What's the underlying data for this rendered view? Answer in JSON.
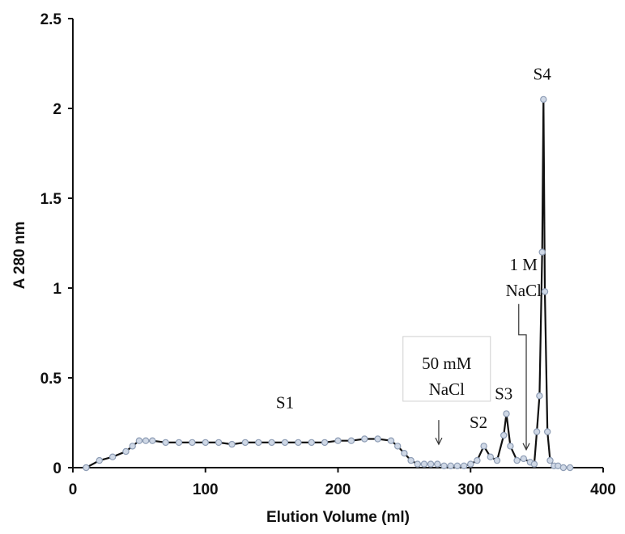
{
  "chart_data": {
    "type": "line",
    "title": "",
    "xlabel": "Elution Volume (ml)",
    "ylabel": "A 280 nm",
    "xlim": [
      0,
      400
    ],
    "ylim": [
      0,
      2.5
    ],
    "x_ticks": [
      0,
      100,
      200,
      300,
      400
    ],
    "x_tick_labels": [
      "0",
      "100",
      "200",
      "300",
      "400"
    ],
    "y_ticks": [
      0,
      0.5,
      1,
      1.5,
      2,
      2.5
    ],
    "y_tick_labels": [
      "0",
      "0.5",
      "1",
      "1.5",
      "2",
      "2.5"
    ],
    "grid": false,
    "legend": "none",
    "series": [
      {
        "x": [
          10,
          20,
          30,
          40,
          45,
          50,
          55,
          60,
          70,
          80,
          90,
          100,
          110,
          120,
          130,
          140,
          150,
          160,
          170,
          180,
          190,
          200,
          210,
          220,
          230,
          240,
          245,
          250,
          255,
          260,
          265,
          270,
          275,
          280,
          285,
          290,
          295,
          300,
          305,
          310,
          315,
          320,
          325,
          327,
          330,
          335,
          340,
          345,
          348,
          350,
          352,
          354,
          355,
          356,
          358,
          360,
          363,
          366,
          370,
          375
        ],
        "y": [
          0,
          0.04,
          0.06,
          0.09,
          0.12,
          0.15,
          0.15,
          0.15,
          0.14,
          0.14,
          0.14,
          0.14,
          0.14,
          0.13,
          0.14,
          0.14,
          0.14,
          0.14,
          0.14,
          0.14,
          0.14,
          0.15,
          0.15,
          0.16,
          0.16,
          0.15,
          0.12,
          0.08,
          0.04,
          0.02,
          0.02,
          0.02,
          0.02,
          0.01,
          0.01,
          0.01,
          0.01,
          0.02,
          0.04,
          0.12,
          0.06,
          0.04,
          0.18,
          0.3,
          0.12,
          0.04,
          0.05,
          0.03,
          0.02,
          0.2,
          0.4,
          1.2,
          2.05,
          0.98,
          0.2,
          0.04,
          0.01,
          0.01,
          0.0,
          0.0
        ]
      }
    ],
    "annotations": [
      {
        "id": "s1",
        "text": "S1",
        "x": 160,
        "y": 0.33
      },
      {
        "id": "s2",
        "text": "S2",
        "x": 306,
        "y": 0.22
      },
      {
        "id": "s3",
        "text": "S3",
        "x": 325,
        "y": 0.38
      },
      {
        "id": "s4",
        "text": "S4",
        "x": 354,
        "y": 2.16
      },
      {
        "id": "nacl50",
        "text_lines": [
          "50 mM",
          "NaCl"
        ],
        "x": 282,
        "y": 0.55,
        "arrow_to": [
          276,
          0.13
        ]
      },
      {
        "id": "nacl1m",
        "text_lines": [
          "1 M",
          "NaCl"
        ],
        "x": 340,
        "y": 1.1,
        "arrow_to": [
          342,
          0.1
        ]
      }
    ]
  }
}
